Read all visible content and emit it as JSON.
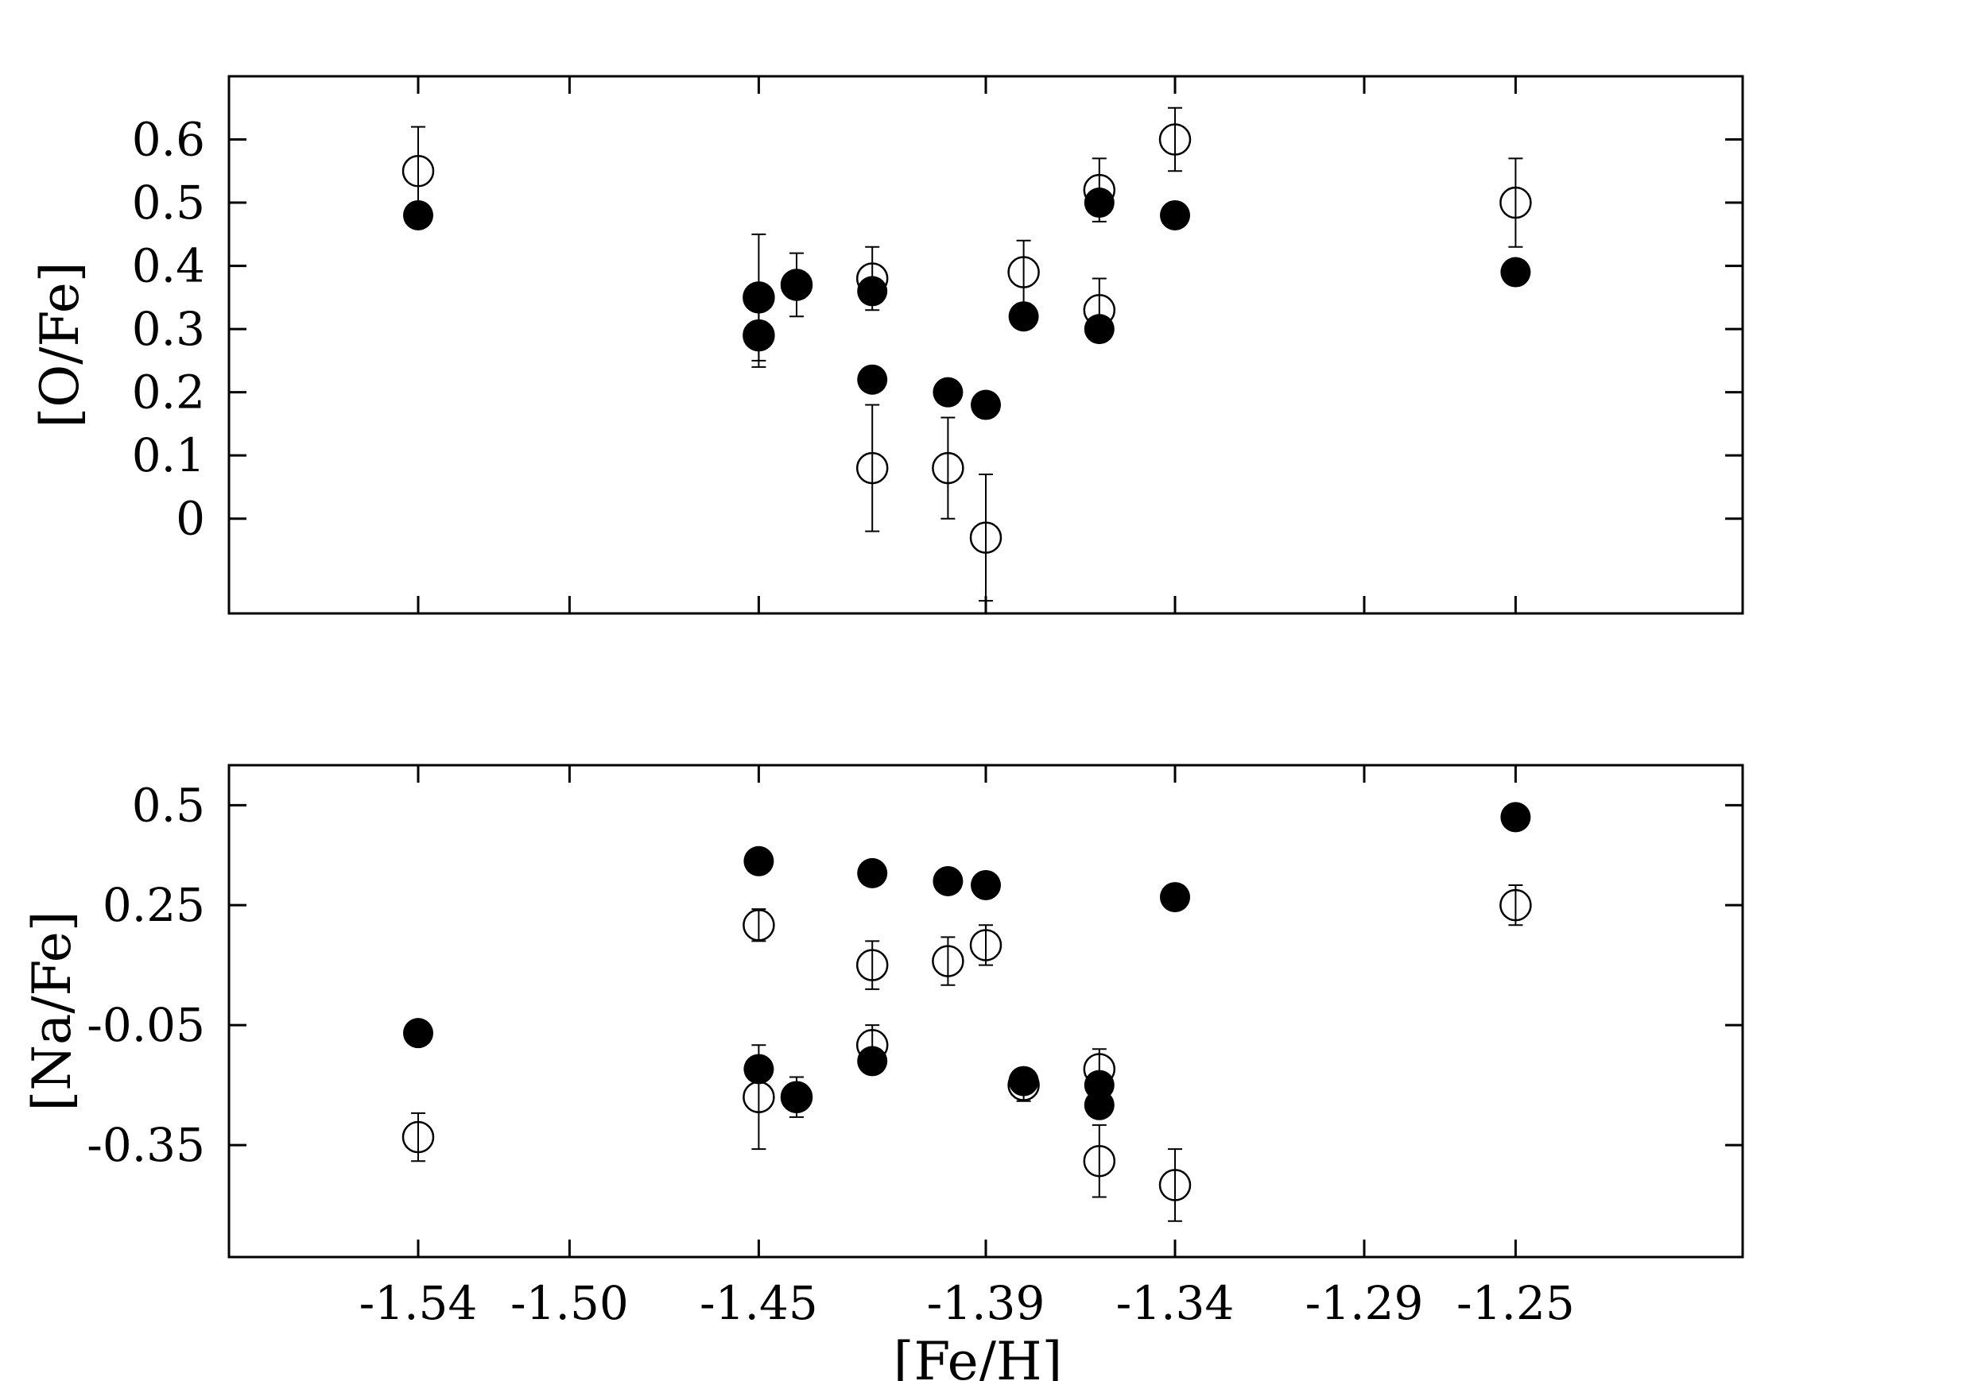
{
  "chart_data": [
    {
      "type": "scatter",
      "id": "top",
      "xlabel": "",
      "ylabel": "[O/Fe]",
      "x_ticks": [
        -1.54,
        -1.5,
        -1.45,
        -1.39,
        -1.34,
        -1.29,
        -1.25
      ],
      "x_tick_labels": [],
      "y_ticks": [
        0,
        0.1,
        0.2,
        0.3,
        0.4,
        0.5,
        0.6
      ],
      "y_tick_labels": [
        "0",
        "0.1",
        "0.2",
        "0.3",
        "0.4",
        "0.5",
        "0.6"
      ],
      "xlim": [
        -1.59,
        -1.19
      ],
      "ylim": [
        -0.15,
        0.7
      ],
      "series": [
        {
          "marker": "filled-circle",
          "points": [
            {
              "x": -1.54,
              "y": 0.48
            },
            {
              "x": -1.45,
              "y": 0.35
            },
            {
              "x": -1.45,
              "y": 0.29
            },
            {
              "x": -1.44,
              "y": 0.37
            },
            {
              "x": -1.42,
              "y": 0.36
            },
            {
              "x": -1.42,
              "y": 0.22
            },
            {
              "x": -1.4,
              "y": 0.2
            },
            {
              "x": -1.39,
              "y": 0.18
            },
            {
              "x": -1.38,
              "y": 0.32
            },
            {
              "x": -1.36,
              "y": 0.5
            },
            {
              "x": -1.36,
              "y": 0.3
            },
            {
              "x": -1.34,
              "y": 0.48
            },
            {
              "x": -1.25,
              "y": 0.39
            }
          ]
        },
        {
          "marker": "open-circle",
          "points": [
            {
              "x": -1.54,
              "y": 0.55,
              "yerr": 0.07
            },
            {
              "x": -1.45,
              "y": 0.35,
              "yerr": 0.1
            },
            {
              "x": -1.45,
              "y": 0.29,
              "yerr": 0.05
            },
            {
              "x": -1.44,
              "y": 0.37,
              "yerr": 0.05
            },
            {
              "x": -1.42,
              "y": 0.38,
              "yerr": 0.05
            },
            {
              "x": -1.42,
              "y": 0.08,
              "yerr": 0.1
            },
            {
              "x": -1.4,
              "y": 0.08,
              "yerr": 0.08
            },
            {
              "x": -1.39,
              "y": -0.03,
              "yerr": 0.1
            },
            {
              "x": -1.38,
              "y": 0.39,
              "yerr": 0.05
            },
            {
              "x": -1.36,
              "y": 0.52,
              "yerr": 0.05
            },
            {
              "x": -1.36,
              "y": 0.33,
              "yerr": 0.05
            },
            {
              "x": -1.34,
              "y": 0.6,
              "yerr": 0.05
            },
            {
              "x": -1.25,
              "y": 0.5,
              "yerr": 0.07
            }
          ]
        }
      ]
    },
    {
      "type": "scatter",
      "id": "bottom",
      "xlabel": "[Fe/H]",
      "ylabel": "[Na/Fe]",
      "x_ticks": [
        -1.54,
        -1.5,
        -1.45,
        -1.39,
        -1.34,
        -1.29,
        -1.25
      ],
      "x_tick_labels": [
        "-1.54",
        "-1.50",
        "-1.45",
        "-1.39",
        "-1.34",
        "-1.29",
        "-1.25"
      ],
      "y_ticks": [
        -0.35,
        -0.05,
        0.25,
        0.5
      ],
      "y_tick_labels": [
        "-0.35",
        "-0.05",
        "0.25",
        "0.5"
      ],
      "xlim": [
        -1.59,
        -1.19
      ],
      "ylim": [
        -0.63,
        0.6
      ],
      "series": [
        {
          "marker": "filled-circle",
          "points": [
            {
              "x": -1.54,
              "y": -0.07
            },
            {
              "x": -1.45,
              "y": 0.36
            },
            {
              "x": -1.45,
              "y": -0.16
            },
            {
              "x": -1.44,
              "y": -0.23
            },
            {
              "x": -1.42,
              "y": 0.33
            },
            {
              "x": -1.42,
              "y": -0.14
            },
            {
              "x": -1.4,
              "y": 0.31
            },
            {
              "x": -1.39,
              "y": 0.3
            },
            {
              "x": -1.38,
              "y": -0.19
            },
            {
              "x": -1.36,
              "y": -0.2
            },
            {
              "x": -1.36,
              "y": -0.25
            },
            {
              "x": -1.34,
              "y": 0.27
            },
            {
              "x": -1.25,
              "y": 0.47
            }
          ]
        },
        {
          "marker": "open-circle",
          "points": [
            {
              "x": -1.54,
              "y": -0.33,
              "yerr": 0.06
            },
            {
              "x": -1.45,
              "y": 0.2,
              "yerr": 0.04
            },
            {
              "x": -1.45,
              "y": -0.23,
              "yerr": 0.13
            },
            {
              "x": -1.44,
              "y": -0.23,
              "yerr": 0.05
            },
            {
              "x": -1.42,
              "y": 0.1,
              "yerr": 0.06
            },
            {
              "x": -1.42,
              "y": -0.1,
              "yerr": 0.05
            },
            {
              "x": -1.4,
              "y": 0.11,
              "yerr": 0.06
            },
            {
              "x": -1.39,
              "y": 0.15,
              "yerr": 0.05
            },
            {
              "x": -1.38,
              "y": -0.2,
              "yerr": 0.04
            },
            {
              "x": -1.36,
              "y": -0.16,
              "yerr": 0.05
            },
            {
              "x": -1.36,
              "y": -0.39,
              "yerr": 0.09
            },
            {
              "x": -1.34,
              "y": -0.45,
              "yerr": 0.09
            },
            {
              "x": -1.25,
              "y": 0.25,
              "yerr": 0.05
            }
          ]
        }
      ]
    }
  ]
}
